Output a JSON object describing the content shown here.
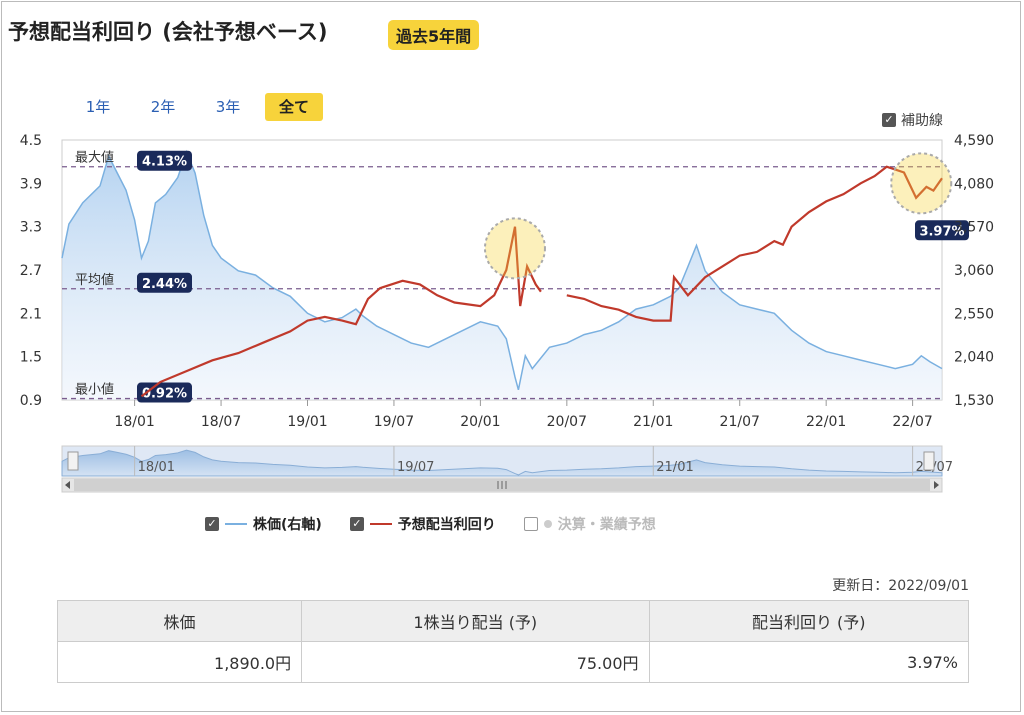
{
  "header": {
    "title": "予想配当利回り (会社予想ベース)",
    "badge": "過去5年間"
  },
  "range_tabs": [
    "1年",
    "2年",
    "3年",
    "全て"
  ],
  "range_active": 3,
  "aux_lines_label": "補助線",
  "legend": {
    "price": "株価(右軸)",
    "yield": "予想配当利回り",
    "earnings": "決算・業績予想"
  },
  "updated": "更新日：2022/09/01",
  "summary": {
    "headers": [
      "株価",
      "1株当り配当 (予)",
      "配当利回り (予)"
    ],
    "values": [
      "1,890.0円",
      "75.00円",
      "3.97%"
    ]
  },
  "colors": {
    "price": "#7ab0e0",
    "yield": "#c0392b",
    "accent": "#f7d33b",
    "label_bg": "#1a2a5a"
  },
  "chart_data": {
    "type": "line",
    "x_ticks": [
      "18/01",
      "18/07",
      "19/01",
      "19/07",
      "20/01",
      "20/07",
      "21/01",
      "21/07",
      "22/01",
      "22/07"
    ],
    "nav_ticks": [
      "18/01",
      "19/07",
      "21/01",
      "22/07"
    ],
    "y_left": {
      "ticks": [
        "4.5",
        "3.9",
        "3.3",
        "2.7",
        "2.1",
        "1.5",
        "0.9"
      ],
      "range": [
        0.9,
        4.5
      ]
    },
    "y_right": {
      "ticks": [
        "4,590",
        "4,080",
        "3,570",
        "3,060",
        "2,550",
        "2,040",
        "1,530"
      ],
      "range": [
        1530,
        4590
      ]
    },
    "reference_lines": [
      {
        "label": "最大値",
        "value": 4.13,
        "tag": "4.13%"
      },
      {
        "label": "平均値",
        "value": 2.44,
        "tag": "2.44%"
      },
      {
        "label": "最小値",
        "value": 0.92,
        "tag": "0.92%"
      }
    ],
    "last_value_tag": "3.97%",
    "x_range": [
      2017.58,
      2022.67
    ],
    "series": [
      {
        "name": "株価(右軸)",
        "axis": "right",
        "points": [
          [
            2017.58,
            3200
          ],
          [
            2017.62,
            3600
          ],
          [
            2017.7,
            3850
          ],
          [
            2017.8,
            4050
          ],
          [
            2017.85,
            4400
          ],
          [
            2017.9,
            4200
          ],
          [
            2017.95,
            4000
          ],
          [
            2018.0,
            3650
          ],
          [
            2018.04,
            3200
          ],
          [
            2018.08,
            3400
          ],
          [
            2018.12,
            3850
          ],
          [
            2018.18,
            3950
          ],
          [
            2018.25,
            4150
          ],
          [
            2018.3,
            4450
          ],
          [
            2018.35,
            4200
          ],
          [
            2018.4,
            3700
          ],
          [
            2018.45,
            3350
          ],
          [
            2018.5,
            3200
          ],
          [
            2018.6,
            3050
          ],
          [
            2018.7,
            3000
          ],
          [
            2018.8,
            2850
          ],
          [
            2018.9,
            2750
          ],
          [
            2019.0,
            2550
          ],
          [
            2019.1,
            2450
          ],
          [
            2019.2,
            2500
          ],
          [
            2019.28,
            2600
          ],
          [
            2019.32,
            2520
          ],
          [
            2019.4,
            2400
          ],
          [
            2019.5,
            2300
          ],
          [
            2019.6,
            2200
          ],
          [
            2019.7,
            2150
          ],
          [
            2019.8,
            2250
          ],
          [
            2019.9,
            2350
          ],
          [
            2020.0,
            2450
          ],
          [
            2020.1,
            2400
          ],
          [
            2020.15,
            2250
          ],
          [
            2020.2,
            1800
          ],
          [
            2020.22,
            1650
          ],
          [
            2020.26,
            2050
          ],
          [
            2020.3,
            1900
          ],
          [
            2020.4,
            2150
          ],
          [
            2020.5,
            2200
          ],
          [
            2020.6,
            2300
          ],
          [
            2020.7,
            2350
          ],
          [
            2020.8,
            2450
          ],
          [
            2020.9,
            2600
          ],
          [
            2021.0,
            2650
          ],
          [
            2021.05,
            2700
          ],
          [
            2021.1,
            2750
          ],
          [
            2021.15,
            2850
          ],
          [
            2021.2,
            3100
          ],
          [
            2021.25,
            3350
          ],
          [
            2021.3,
            3050
          ],
          [
            2021.4,
            2800
          ],
          [
            2021.5,
            2650
          ],
          [
            2021.6,
            2600
          ],
          [
            2021.7,
            2550
          ],
          [
            2021.8,
            2350
          ],
          [
            2021.9,
            2200
          ],
          [
            2022.0,
            2100
          ],
          [
            2022.1,
            2050
          ],
          [
            2022.2,
            2000
          ],
          [
            2022.3,
            1950
          ],
          [
            2022.4,
            1900
          ],
          [
            2022.5,
            1950
          ],
          [
            2022.55,
            2050
          ],
          [
            2022.6,
            1980
          ],
          [
            2022.67,
            1900
          ]
        ]
      },
      {
        "name": "予想配当利回り",
        "axis": "left",
        "segments": [
          [
            [
              2018.04,
              0.95
            ],
            [
              2018.15,
              1.15
            ],
            [
              2018.3,
              1.3
            ],
            [
              2018.45,
              1.45
            ],
            [
              2018.6,
              1.55
            ],
            [
              2018.75,
              1.7
            ],
            [
              2018.9,
              1.85
            ],
            [
              2019.0,
              2.0
            ],
            [
              2019.1,
              2.05
            ],
            [
              2019.2,
              2.0
            ],
            [
              2019.28,
              1.95
            ],
            [
              2019.35,
              2.3
            ],
            [
              2019.42,
              2.45
            ],
            [
              2019.55,
              2.55
            ],
            [
              2019.65,
              2.5
            ],
            [
              2019.75,
              2.35
            ],
            [
              2019.85,
              2.25
            ],
            [
              2020.0,
              2.2
            ],
            [
              2020.08,
              2.35
            ],
            [
              2020.15,
              2.7
            ],
            [
              2020.2,
              3.3
            ],
            [
              2020.23,
              2.2
            ],
            [
              2020.27,
              2.75
            ],
            [
              2020.32,
              2.5
            ],
            [
              2020.35,
              2.4
            ]
          ],
          [
            [
              2020.5,
              2.35
            ],
            [
              2020.6,
              2.3
            ],
            [
              2020.7,
              2.2
            ],
            [
              2020.8,
              2.15
            ],
            [
              2020.9,
              2.05
            ],
            [
              2021.0,
              2.0
            ],
            [
              2021.1,
              2.0
            ],
            [
              2021.12,
              2.6
            ],
            [
              2021.2,
              2.35
            ],
            [
              2021.3,
              2.6
            ],
            [
              2021.4,
              2.75
            ],
            [
              2021.5,
              2.9
            ],
            [
              2021.6,
              2.95
            ],
            [
              2021.7,
              3.1
            ],
            [
              2021.75,
              3.05
            ],
            [
              2021.8,
              3.3
            ],
            [
              2021.9,
              3.5
            ],
            [
              2022.0,
              3.65
            ],
            [
              2022.1,
              3.75
            ],
            [
              2022.2,
              3.9
            ],
            [
              2022.28,
              4.0
            ],
            [
              2022.35,
              4.13
            ],
            [
              2022.45,
              4.05
            ],
            [
              2022.52,
              3.7
            ],
            [
              2022.58,
              3.85
            ],
            [
              2022.62,
              3.8
            ],
            [
              2022.67,
              3.97
            ]
          ]
        ]
      }
    ],
    "highlights": [
      [
        2020.2,
        3.0
      ],
      [
        2022.55,
        3.9
      ]
    ]
  }
}
